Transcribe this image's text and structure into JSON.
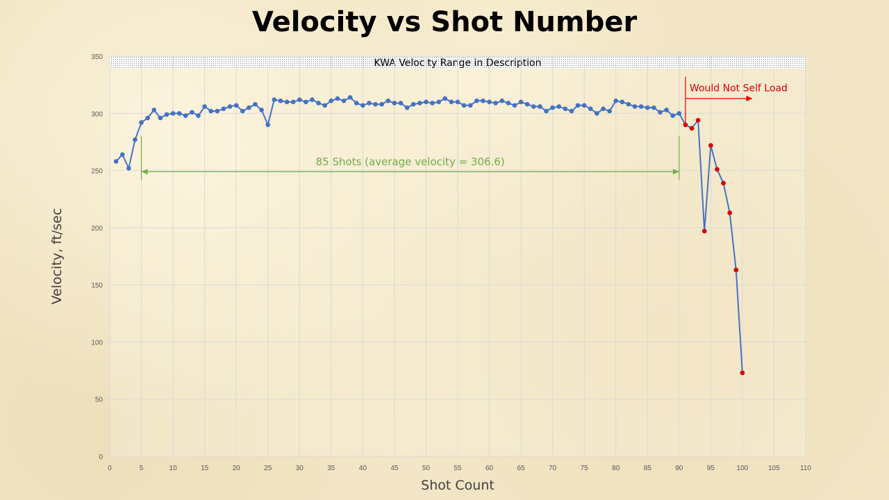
{
  "chart_data": {
    "type": "scatter",
    "title": "Velocity vs Shot Number",
    "xlabel": "Shot Count",
    "ylabel": "Velocity, ft/sec",
    "xlim": [
      0,
      110
    ],
    "ylim": [
      0,
      350
    ],
    "xticks": [
      0,
      5,
      10,
      15,
      20,
      25,
      30,
      35,
      40,
      45,
      50,
      55,
      60,
      65,
      70,
      75,
      80,
      85,
      90,
      95,
      100,
      105,
      110
    ],
    "yticks": [
      0,
      50,
      100,
      150,
      200,
      250,
      300,
      350
    ],
    "grid": true,
    "colors": {
      "series": "#4472c4",
      "highlight": "#e00000",
      "annotation": "#70ad47",
      "band": "#b0b0b0"
    },
    "series": [
      {
        "x": [
          1,
          2,
          3,
          4,
          5,
          6,
          7,
          8,
          9,
          10,
          11,
          12,
          13,
          14,
          15,
          16,
          17,
          18,
          19,
          20,
          21,
          22,
          23,
          24,
          25,
          26,
          27,
          28,
          29,
          30,
          31,
          32,
          33,
          34,
          35,
          36,
          37,
          38,
          39,
          40,
          41,
          42,
          43,
          44,
          45,
          46,
          47,
          48,
          49,
          50,
          51,
          52,
          53,
          54,
          55,
          56,
          57,
          58,
          59,
          60,
          61,
          62,
          63,
          64,
          65,
          66,
          67,
          68,
          69,
          70,
          71,
          72,
          73,
          74,
          75,
          76,
          77,
          78,
          79,
          80,
          81,
          82,
          83,
          84,
          85,
          86,
          87,
          88,
          89,
          90,
          91,
          92,
          93,
          94,
          95,
          96,
          97,
          98,
          99,
          100
        ],
        "y": [
          258,
          264,
          252,
          277,
          292,
          296,
          303,
          296,
          299,
          300,
          300,
          298,
          301,
          298,
          306,
          302,
          302,
          304,
          306,
          307,
          302,
          305,
          308,
          303,
          290,
          312,
          311,
          310,
          310,
          312,
          310,
          312,
          309,
          307,
          311,
          313,
          311,
          314,
          309,
          307,
          309,
          308,
          308,
          311,
          309,
          309,
          305,
          308,
          309,
          310,
          309,
          310,
          313,
          310,
          310,
          307,
          307,
          311,
          311,
          310,
          309,
          311,
          309,
          307,
          310,
          308,
          306,
          306,
          302,
          305,
          306,
          304,
          302,
          307,
          307,
          304,
          300,
          304,
          302,
          311,
          310,
          308,
          306,
          306,
          305,
          305,
          301,
          303,
          298,
          300,
          290,
          287,
          294,
          197,
          272,
          251,
          239,
          213,
          163,
          73
        ]
      }
    ],
    "highlighted_points": {
      "x": [
        91,
        92,
        93,
        94,
        95,
        96,
        97,
        98,
        99,
        100
      ],
      "y": [
        290,
        287,
        294,
        197,
        272,
        251,
        239,
        213,
        163,
        73
      ]
    },
    "annotations": {
      "band_label": "KWA Velocity Range in Description",
      "band_range": [
        339,
        350
      ],
      "span_label": "85 Shots (average velocity = 306.6)",
      "span_x": [
        5,
        90
      ],
      "span_y": 249,
      "no_load_label": "Would Not Self Load",
      "no_load_x": 91
    }
  }
}
